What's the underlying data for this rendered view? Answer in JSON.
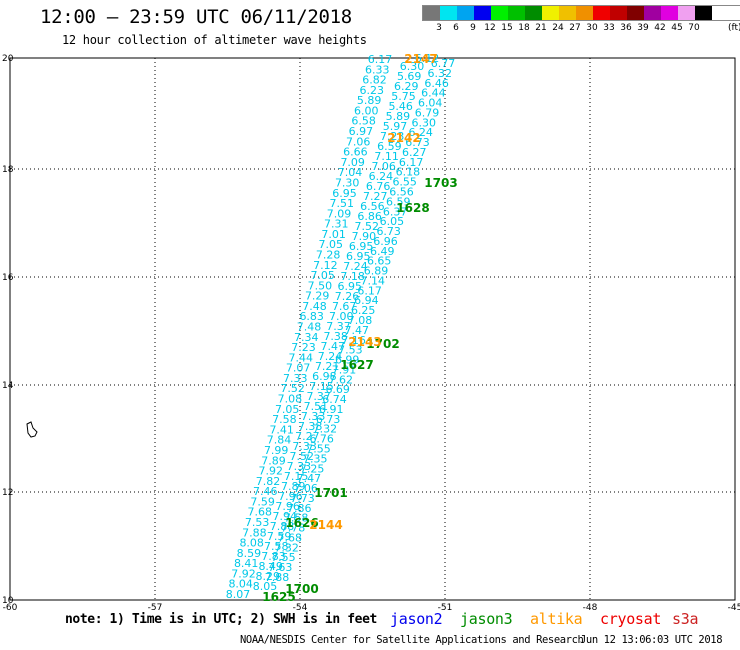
{
  "title": "12:00 – 23:59 UTC 06/11/2018",
  "subtitle": "12 hour collection of altimeter wave heights",
  "legend": {
    "unit": "(ft)",
    "labels": [
      "3",
      "6",
      "9",
      "12",
      "15",
      "18",
      "21",
      "24",
      "27",
      "30",
      "33",
      "36",
      "39",
      "42",
      "45",
      "70"
    ],
    "colors": [
      "#777777",
      "#00e5f0",
      "#00a4f0",
      "#0000f0",
      "#00f000",
      "#00c000",
      "#008c00",
      "#f0f000",
      "#f0c000",
      "#f09000",
      "#f00000",
      "#c00000",
      "#800000",
      "#a000a0",
      "#e000e0",
      "#f0a0f0",
      "#000000"
    ]
  },
  "axes": {
    "x_ticks": [
      "-60",
      "-57",
      "-54",
      "-51",
      "-48",
      "-45"
    ],
    "y_ticks": [
      "10",
      "12",
      "14",
      "16",
      "18",
      "20"
    ]
  },
  "swh_colors": {
    "jason3": "#00c8e8",
    "altika": "#ff9900",
    "time": "#008c00"
  },
  "swh_tracks": [
    {
      "id": "left",
      "values": [
        "6.17",
        "6.33",
        "6.82",
        "6.23",
        "5.89",
        "6.00",
        "6.58",
        "6.97",
        "7.06",
        "6.66",
        "7.09",
        "7.04",
        "7.30",
        "6.95",
        "7.51",
        "7.09",
        "7.31",
        "7.01",
        "7.05",
        "7.28",
        "7.12",
        "7.05",
        "7.50",
        "7.29",
        "7.48",
        "6.83",
        "7.48",
        "7.34",
        "7.23",
        "7.44",
        "7.07",
        "7.33",
        "7.52",
        "7.08",
        "7.05",
        "7.58",
        "7.41",
        "7.84",
        "7.99",
        "7.89",
        "7.92",
        "7.82",
        "7.46",
        "7.59",
        "7.68",
        "7.53",
        "7.88",
        "8.08",
        "8.59",
        "8.41",
        "7.92",
        "8.04",
        "8.07"
      ]
    },
    {
      "id": "middle",
      "values": [
        "6.30",
        "5.69",
        "6.29",
        "5.75",
        "5.46",
        "5.89",
        "5.97",
        "7.23",
        "6.59",
        "7.11",
        "7.06",
        "6.24",
        "6.76",
        "7.27",
        "6.56",
        "6.86",
        "7.52",
        "7.90",
        "6.95",
        "6.95",
        "7.24",
        "7.18",
        "6.95",
        "7.26",
        "7.67",
        "7.00",
        "7.37",
        "7.38",
        "7.47",
        "7.24",
        "7.21",
        "6.98",
        "7.15",
        "7.37",
        "7.51",
        "7.33",
        "7.38",
        "7.27",
        "7.33",
        "7.52",
        "7.33",
        "7.15",
        "7.89",
        "7.96",
        "7.96",
        "7.94",
        "7.88",
        "7.59",
        "7.58",
        "7.83",
        "8.49",
        "8.29",
        "8.05"
      ]
    },
    {
      "id": "right",
      "values": [
        "6.77",
        "6.32",
        "6.46",
        "6.44",
        "6.04",
        "6.79",
        "6.30",
        "6.24",
        "6.73",
        "6.27",
        "6.17",
        "6.18",
        "6.55",
        "6.56",
        "6.59",
        "6.37",
        "6.05",
        "6.73",
        "6.96",
        "6.49",
        "6.65",
        "6.89",
        "7.14",
        "6.17",
        "6.94",
        "6.25",
        "7.08",
        "7.47",
        "7.16",
        "7.53",
        "6.99",
        "7.91",
        "7.62",
        "6.69",
        "6.74",
        "6.91",
        "6.73",
        "7.32",
        "6.76",
        "7.55",
        "7.35",
        "7.25",
        "7.47",
        "7.06",
        "7.73",
        "7.86",
        "7.58",
        "7.78",
        "7.68",
        "7.32",
        "7.55",
        "7.63",
        "7.88"
      ]
    }
  ],
  "time_labels": [
    "1703",
    "1628",
    "1702",
    "1627",
    "1701",
    "1626",
    "1700",
    "1625"
  ],
  "altika_labels": [
    "2147",
    "2142",
    "2143",
    "2144"
  ],
  "top_altika_extra": "6.12",
  "footer": {
    "note": "note: 1) Time is in UTC; 2) SWH is in feet",
    "credit": "NOAA/NESDIS Center for Satellite Applications and Research",
    "timestamp": "Jun 12 13:06:03 UTC 2018",
    "satellites": [
      {
        "name": "jason2",
        "color": "#0000ee"
      },
      {
        "name": "jason3",
        "color": "#008c00"
      },
      {
        "name": "altika",
        "color": "#ff9900"
      },
      {
        "name": "cryosat",
        "color": "#ee0000"
      },
      {
        "name": "s3a",
        "color": "#cc2222"
      }
    ]
  }
}
